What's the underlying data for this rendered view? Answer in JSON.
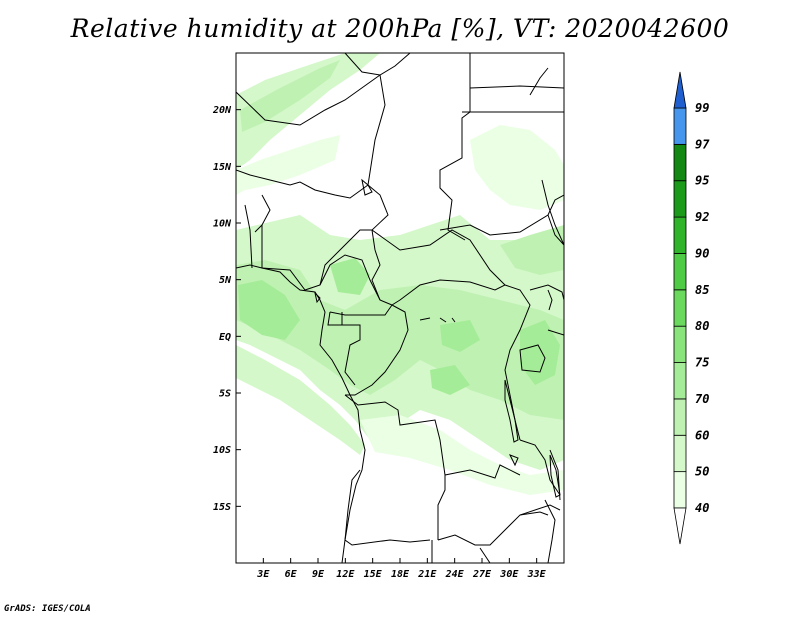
{
  "title": "Relative humidity at 200hPa [%], VT: 2020042600",
  "credit": "GrADS: IGES/COLA",
  "map": {
    "lon_range": [
      0,
      36
    ],
    "lat_range": [
      -20,
      25
    ],
    "lat_ticks": [
      {
        "value": 20,
        "label": "20N"
      },
      {
        "value": 15,
        "label": "15N"
      },
      {
        "value": 10,
        "label": "10N"
      },
      {
        "value": 5,
        "label": "5N"
      },
      {
        "value": 0,
        "label": "EQ"
      },
      {
        "value": -5,
        "label": "5S"
      },
      {
        "value": -10,
        "label": "10S"
      },
      {
        "value": -15,
        "label": "15S"
      }
    ],
    "lon_ticks": [
      {
        "value": 3,
        "label": "3E"
      },
      {
        "value": 6,
        "label": "6E"
      },
      {
        "value": 9,
        "label": "9E"
      },
      {
        "value": 12,
        "label": "12E"
      },
      {
        "value": 15,
        "label": "15E"
      },
      {
        "value": 18,
        "label": "18E"
      },
      {
        "value": 21,
        "label": "21E"
      },
      {
        "value": 24,
        "label": "24E"
      },
      {
        "value": 27,
        "label": "27E"
      },
      {
        "value": 30,
        "label": "30E"
      },
      {
        "value": 33,
        "label": "33E"
      }
    ]
  },
  "colorbar": {
    "levels": [
      {
        "label": "40",
        "color": "#eaffe4"
      },
      {
        "label": "50",
        "color": "#d4f8ca"
      },
      {
        "label": "60",
        "color": "#bff2b2"
      },
      {
        "label": "70",
        "color": "#a5ec98"
      },
      {
        "label": "75",
        "color": "#8ae47c"
      },
      {
        "label": "80",
        "color": "#6ad95e"
      },
      {
        "label": "85",
        "color": "#4fcb45"
      },
      {
        "label": "90",
        "color": "#30b42a"
      },
      {
        "label": "92",
        "color": "#1c9a1a"
      },
      {
        "label": "95",
        "color": "#138812"
      },
      {
        "label": "97",
        "color": "#4696ee"
      },
      {
        "label": "99",
        "color": "#2c78e0"
      }
    ],
    "low_color": "#ffffff",
    "high_color": "#1f5fd0"
  }
}
